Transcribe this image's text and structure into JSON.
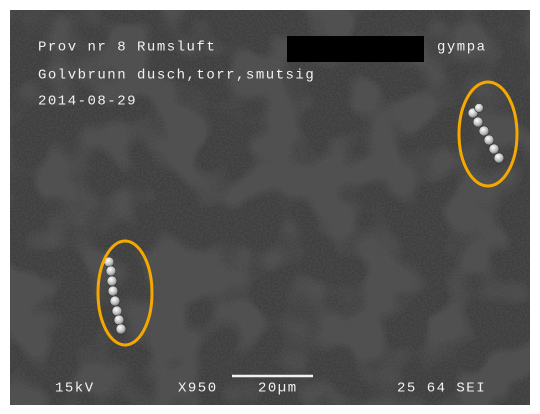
{
  "header": {
    "line1": "Prov nr 8 Rumsluft",
    "line1_end": "gympa",
    "line2": "Golvbrunn dusch,torr,smutsig",
    "date": "2014-08-29"
  },
  "footer": {
    "voltage": "15kV",
    "magnification": "X950",
    "scale": "20µm",
    "label": "25 64 SEI"
  }
}
